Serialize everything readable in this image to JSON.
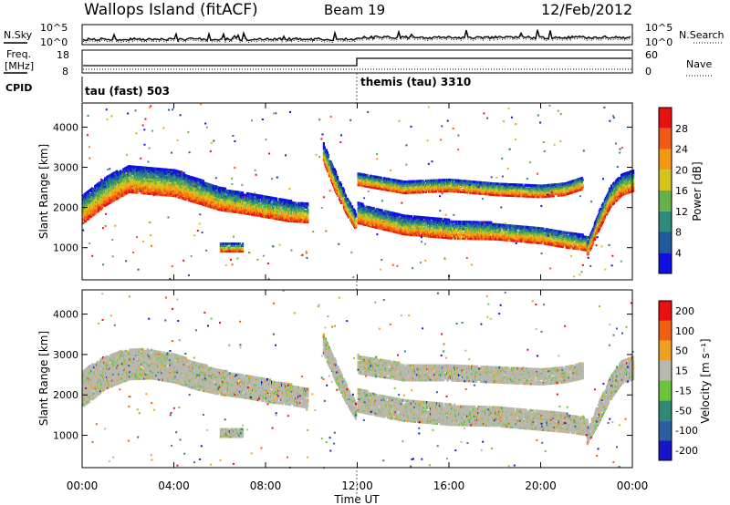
{
  "header": {
    "station": "Wallops Island (fitACF)",
    "beam": "Beam 19",
    "date": "12/Feb/2012"
  },
  "panel_labels": {
    "nsky": "N.Sky",
    "nsearch": "N.Search",
    "freq_line1": "Freq.",
    "freq_line2": "[MHz]",
    "nave": "Nave",
    "cpid": "CPID"
  },
  "noise_ticks": {
    "top": "10^5",
    "bottom": "10^0"
  },
  "freq_ticks": {
    "left": [
      "18",
      "8"
    ],
    "right": [
      "60",
      "0"
    ]
  },
  "cpid_segments": [
    {
      "label": "tau (fast) 503",
      "start_hour": 0
    },
    {
      "label": "themis (tau) 3310",
      "start_hour": 12
    }
  ],
  "colorbars": {
    "power": {
      "label": "Power [dB]",
      "ticks": [
        "4",
        "8",
        "12",
        "16",
        "20",
        "24",
        "28"
      ],
      "colors": [
        "#1010e0",
        "#1f5a9c",
        "#2e8a7a",
        "#66b04a",
        "#d4c41c",
        "#f59a10",
        "#f05a12",
        "#e81010"
      ]
    },
    "velocity": {
      "label": "Velocity [m s⁻¹]",
      "ticks": [
        "200",
        "100",
        "50",
        "15",
        "-15",
        "-50",
        "-100",
        "-200"
      ],
      "colors": [
        "#1616c8",
        "#2a5fa0",
        "#2f8a74",
        "#6cc43c",
        "#b8b8b0",
        "#f0a020",
        "#f06010",
        "#e81010"
      ]
    }
  },
  "chart_data": [
    {
      "type": "heatmap",
      "title": "Power",
      "xlabel": "Time UT",
      "ylabel": "Slant Range [km]",
      "xlim": [
        0,
        24
      ],
      "ylim": [
        200,
        4600
      ],
      "yticks": [
        "1000",
        "2000",
        "3000",
        "4000"
      ],
      "xticks": [
        "00:00",
        "04:00",
        "08:00",
        "12:00",
        "16:00",
        "20:00",
        "00:00"
      ],
      "bands": [
        {
          "t": [
            0.0,
            1.0,
            2.0,
            3.0,
            4.0,
            5.0,
            6.0,
            7.0,
            8.0,
            9.0,
            9.8
          ],
          "center": [
            2000,
            2450,
            2750,
            2700,
            2650,
            2450,
            2250,
            2150,
            2050,
            1950,
            1900
          ],
          "width": [
            700,
            700,
            650,
            650,
            650,
            600,
            550,
            500,
            500,
            500,
            450
          ]
        },
        {
          "t": [
            10.5,
            11.0,
            11.5,
            11.9
          ],
          "center": [
            3400,
            2700,
            2100,
            1700
          ],
          "width": [
            450,
            500,
            450,
            400
          ]
        },
        {
          "t": [
            12.0,
            14.0,
            16.0,
            18.0,
            20.0,
            21.0,
            21.8
          ],
          "center": [
            2750,
            2550,
            2600,
            2500,
            2450,
            2500,
            2650
          ],
          "width": [
            300,
            300,
            300,
            300,
            300,
            300,
            300
          ]
        },
        {
          "t": [
            12.0,
            14.0,
            16.0,
            18.0,
            20.0,
            21.0,
            22.0
          ],
          "center": [
            1900,
            1600,
            1500,
            1450,
            1350,
            1250,
            1150
          ],
          "width": [
            500,
            450,
            450,
            400,
            400,
            400,
            350
          ]
        },
        {
          "t": [
            22.0,
            22.5,
            23.0,
            23.5,
            24.0
          ],
          "center": [
            1000,
            1700,
            2300,
            2600,
            2700
          ],
          "width": [
            350,
            450,
            500,
            500,
            500
          ]
        },
        {
          "t": [
            6.0,
            6.5,
            7.0
          ],
          "center": [
            1050,
            1050,
            1050
          ],
          "width": [
            200,
            200,
            200
          ]
        }
      ]
    },
    {
      "type": "heatmap",
      "title": "Velocity",
      "xlabel": "Time UT",
      "ylabel": "Slant Range [km]",
      "xlim": [
        0,
        24
      ],
      "ylim": [
        200,
        4600
      ],
      "yticks": [
        "1000",
        "2000",
        "3000",
        "4000"
      ],
      "xticks": [
        "00:00",
        "04:00",
        "08:00",
        "12:00",
        "16:00",
        "20:00",
        "00:00"
      ],
      "bands": [
        {
          "t": [
            0.0,
            1.0,
            2.0,
            3.0,
            4.0,
            5.0,
            6.0,
            7.0,
            8.0,
            9.0,
            9.8
          ],
          "center": [
            2200,
            2600,
            2800,
            2800,
            2700,
            2500,
            2350,
            2250,
            2150,
            2050,
            1950
          ],
          "width": [
            900,
            800,
            750,
            700,
            700,
            650,
            600,
            550,
            550,
            500,
            450
          ]
        },
        {
          "t": [
            10.5,
            11.0,
            11.5,
            11.9
          ],
          "center": [
            3300,
            2650,
            2050,
            1650
          ],
          "width": [
            450,
            500,
            450,
            400
          ]
        },
        {
          "t": [
            12.0,
            14.0,
            16.0,
            18.0,
            20.0,
            21.0,
            21.8
          ],
          "center": [
            2800,
            2600,
            2600,
            2550,
            2500,
            2550,
            2650
          ],
          "width": [
            450,
            400,
            400,
            400,
            400,
            400,
            400
          ]
        },
        {
          "t": [
            12.0,
            14.0,
            16.0,
            18.0,
            20.0,
            21.0,
            22.0
          ],
          "center": [
            1900,
            1650,
            1550,
            1500,
            1400,
            1350,
            1250
          ],
          "width": [
            550,
            500,
            500,
            450,
            450,
            450,
            400
          ]
        },
        {
          "t": [
            22.0,
            22.5,
            23.0,
            23.5,
            24.0
          ],
          "center": [
            1000,
            1600,
            2200,
            2600,
            2700
          ],
          "width": [
            350,
            500,
            550,
            550,
            550
          ]
        },
        {
          "t": [
            6.0,
            6.5,
            7.0
          ],
          "center": [
            1100,
            1100,
            1100
          ],
          "width": [
            200,
            200,
            200
          ]
        }
      ]
    }
  ]
}
